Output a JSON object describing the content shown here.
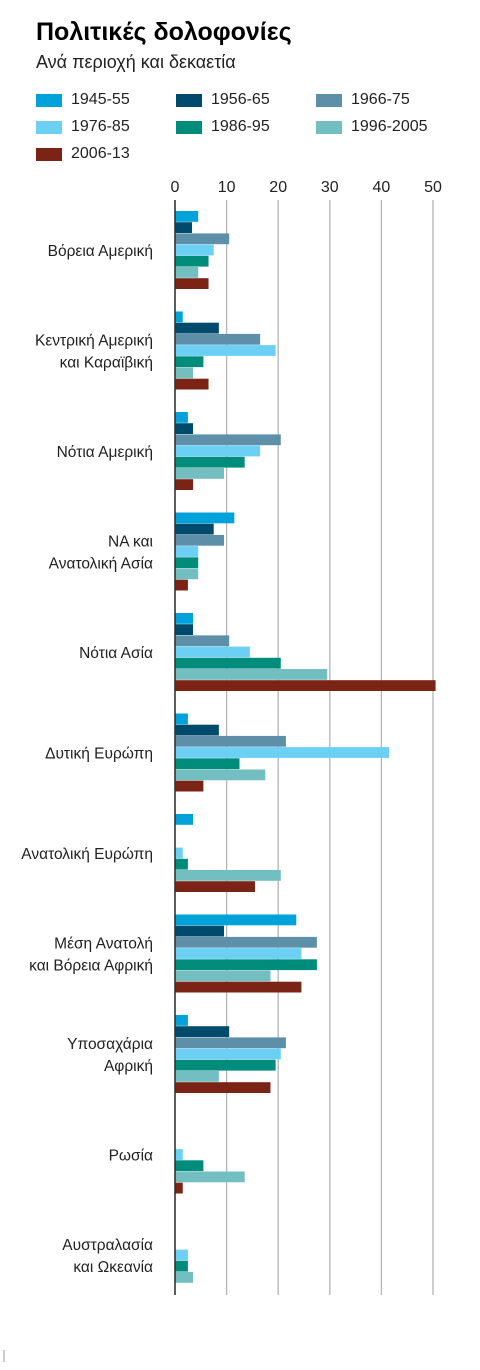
{
  "chart_data": {
    "type": "bar",
    "orientation": "horizontal",
    "title": "Πολιτικές δολοφονίες",
    "subtitle": "Ανά περιοχή και δεκαετία",
    "xlim": [
      0,
      50
    ],
    "xticks": [
      0,
      10,
      20,
      30,
      40,
      50
    ],
    "grid": true,
    "legend_position": "top",
    "categories": [
      [
        "Βόρεια Αμερική"
      ],
      [
        "Κεντρική Αμερική",
        "και Καραϊβική"
      ],
      [
        "Νότια Αμερική"
      ],
      [
        "ΝΑ και",
        "Ανατολική Ασία"
      ],
      [
        "Νότια Ασία"
      ],
      [
        "Δυτική Ευρώπη"
      ],
      [
        "Ανατολική Ευρώπη"
      ],
      [
        "Μέση Ανατολή",
        "και Βόρεια Αφρική"
      ],
      [
        "Υποσαχάρια",
        "Αφρική"
      ],
      [
        "Ρωσία"
      ],
      [
        "Αυστραλασία",
        "και Ωκεανία"
      ]
    ],
    "series": [
      {
        "name": "1945-55",
        "color": "#00a2d9",
        "values": [
          4.5,
          1.5,
          2.5,
          11.5,
          3.5,
          2.5,
          3.5,
          23.5,
          2.5,
          0,
          0
        ]
      },
      {
        "name": "1956-65",
        "color": "#004a6b",
        "values": [
          3.3,
          8.5,
          3.5,
          7.5,
          3.5,
          8.5,
          0,
          9.5,
          10.5,
          0,
          0
        ]
      },
      {
        "name": "1966-75",
        "color": "#5e8fa8",
        "values": [
          10.5,
          16.5,
          20.5,
          9.5,
          10.5,
          21.5,
          0,
          27.5,
          21.5,
          0,
          0
        ]
      },
      {
        "name": "1976-85",
        "color": "#6cd0f5",
        "values": [
          7.5,
          19.5,
          16.5,
          4.5,
          14.5,
          41.5,
          1.5,
          24.5,
          20.5,
          1.5,
          2.5
        ]
      },
      {
        "name": "1986-95",
        "color": "#008c7a",
        "values": [
          6.5,
          5.5,
          13.5,
          4.5,
          20.5,
          12.5,
          2.5,
          27.5,
          19.5,
          5.5,
          2.5
        ]
      },
      {
        "name": "1996-2005",
        "color": "#72bec0",
        "values": [
          4.5,
          3.5,
          9.5,
          4.5,
          29.5,
          17.5,
          20.5,
          18.5,
          8.5,
          13.5,
          3.5
        ]
      },
      {
        "name": "2006-13",
        "color": "#7b2415",
        "values": [
          6.5,
          6.5,
          3.5,
          2.5,
          50.5,
          5.5,
          15.5,
          24.5,
          18.5,
          1.5,
          0
        ]
      }
    ]
  }
}
